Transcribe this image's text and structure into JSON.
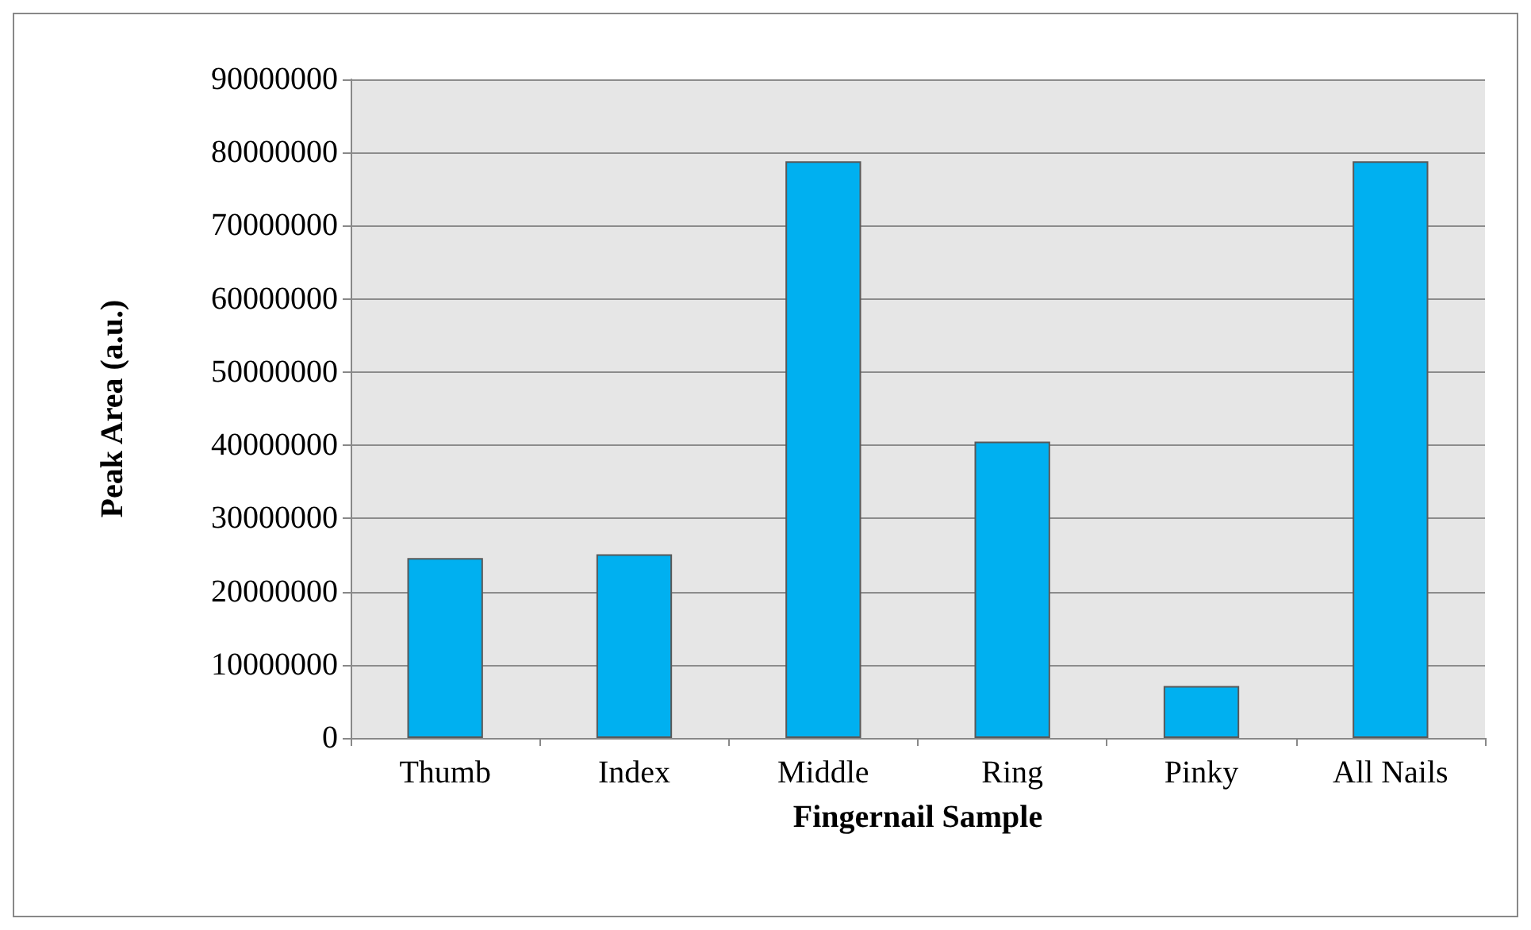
{
  "chart_data": {
    "type": "bar",
    "xlabel": "Fingernail Sample",
    "ylabel": "Peak Area (a.u.)",
    "categories": [
      "Thumb",
      "Index",
      "Middle",
      "Ring",
      "Pinky",
      "All Nails"
    ],
    "values": [
      24600000,
      25100000,
      78800000,
      40500000,
      7100000,
      78800000
    ],
    "color": "#00b0f0",
    "ylim": [
      0,
      90000000
    ],
    "yticks": [
      0,
      10000000,
      20000000,
      30000000,
      40000000,
      50000000,
      60000000,
      70000000,
      80000000,
      90000000
    ],
    "grid": "y"
  }
}
